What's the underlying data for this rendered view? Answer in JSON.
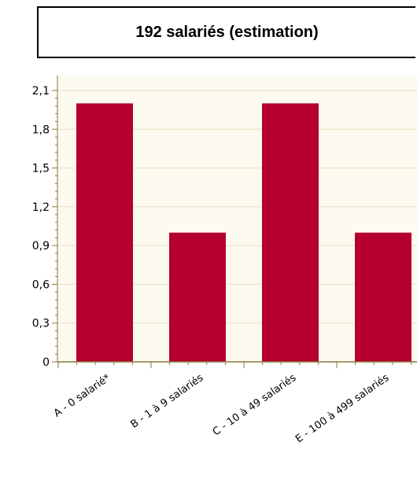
{
  "chart_data": {
    "type": "bar",
    "title": "192 salariés (estimation)",
    "categories": [
      "A - 0 salarié*",
      "B - 1 à 9 salariés",
      "C - 10 à 49 salariés",
      "E - 100 à 499 salariés"
    ],
    "values": [
      2,
      1,
      2,
      1
    ],
    "yticks": [
      "0",
      "0,3",
      "0,6",
      "0,9",
      "1,2",
      "1,5",
      "1,8",
      "2,1"
    ],
    "ylim": [
      0,
      2.1
    ],
    "grid": true,
    "colors": {
      "bar": "#b5002e",
      "plot_bg": "#fdfaf0",
      "grid": "#e8dfc0",
      "axis": "#8a7a40"
    }
  }
}
